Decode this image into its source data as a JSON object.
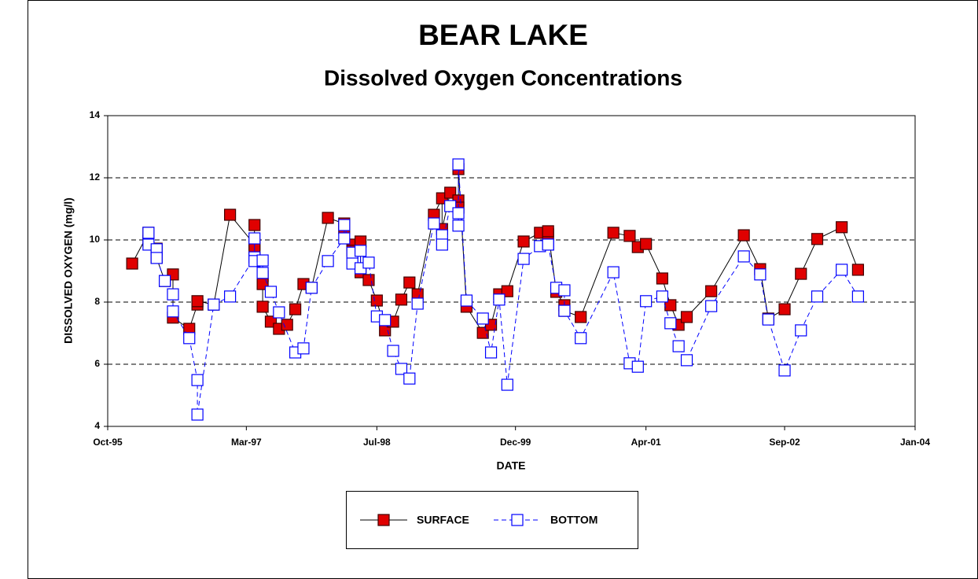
{
  "chart_data": {
    "type": "line",
    "title": "BEAR LAKE",
    "subtitle": "Dissolved Oxygen Concentrations",
    "x_label": "DATE",
    "y_label": "DISSOLVED OXYGEN (mg/l)",
    "xlim": [
      "1995-10",
      "2004-01"
    ],
    "xticks": [
      {
        "value": "1995-10",
        "label": "Oct-95"
      },
      {
        "value": "1997-03",
        "label": "Mar-97"
      },
      {
        "value": "1998-07",
        "label": "Jul-98"
      },
      {
        "value": "1999-12",
        "label": "Dec-99"
      },
      {
        "value": "2001-04",
        "label": "Apr-01"
      },
      {
        "value": "2002-09",
        "label": "Sep-02"
      },
      {
        "value": "2004-01",
        "label": "Jan-04"
      }
    ],
    "ylim": [
      4,
      14
    ],
    "yticks": [
      4,
      6,
      8,
      10,
      12,
      14
    ],
    "grid": true,
    "legend": "bottom",
    "series": [
      {
        "name": "SURFACE",
        "color": "#e00000",
        "line_color": "#000000",
        "marker": "filled-square",
        "dashed": false,
        "x": [
          "1996-01",
          "1996-03",
          "1996-03",
          "1996-04",
          "1996-04",
          "1996-05",
          "1996-06",
          "1996-06",
          "1996-08",
          "1996-09",
          "1996-09",
          "1996-11",
          "1997-01",
          "1997-04",
          "1997-04",
          "1997-04",
          "1997-05",
          "1997-05",
          "1997-05",
          "1997-06",
          "1997-07",
          "1997-08",
          "1997-09",
          "1997-10",
          "1997-11",
          "1998-01",
          "1998-03",
          "1998-03",
          "1998-04",
          "1998-04",
          "1998-05",
          "1998-05",
          "1998-06",
          "1998-07",
          "1998-08",
          "1998-09",
          "1998-10",
          "1998-11",
          "1998-12",
          "1999-02",
          "1999-03",
          "1999-03",
          "1999-04",
          "1999-05",
          "1999-05",
          "1999-05",
          "1999-06",
          "1999-08",
          "1999-09",
          "1999-10",
          "1999-11",
          "2000-01",
          "2000-03",
          "2000-04",
          "2000-04",
          "2000-05",
          "2000-06",
          "2000-06",
          "2000-08",
          "2000-12",
          "2001-02",
          "2001-03",
          "2001-04",
          "2001-06",
          "2001-07",
          "2001-08",
          "2001-09",
          "2001-12",
          "2002-04",
          "2002-06",
          "2002-07",
          "2002-09",
          "2002-11",
          "2003-01",
          "2003-04",
          "2003-06"
        ],
        "values": [
          9.24,
          10.23,
          9.97,
          9.72,
          9.42,
          8.68,
          8.89,
          7.5,
          7.14,
          7.92,
          8.03,
          7.92,
          10.81,
          9.85,
          10.48,
          9.7,
          8.84,
          8.58,
          7.85,
          7.37,
          7.14,
          7.27,
          7.77,
          8.58,
          8.46,
          10.71,
          10.53,
          10.38,
          9.85,
          9.65,
          9.95,
          8.96,
          8.71,
          8.05,
          7.09,
          7.37,
          8.08,
          8.63,
          8.25,
          10.81,
          11.34,
          10.35,
          11.52,
          11.27,
          11.04,
          12.28,
          7.85,
          7.01,
          7.27,
          8.25,
          8.35,
          9.95,
          10.23,
          10.18,
          10.28,
          8.33,
          7.9,
          7.72,
          7.52,
          10.23,
          10.13,
          9.77,
          9.87,
          8.76,
          7.9,
          7.27,
          7.52,
          8.35,
          10.15,
          9.06,
          7.47,
          7.77,
          8.91,
          10.03,
          10.41,
          9.04
        ]
      },
      {
        "name": "BOTTOM",
        "color": "#0000ff",
        "line_color": "#0000ff",
        "marker": "open-square",
        "dashed": true,
        "x": [
          "1996-03",
          "1996-03",
          "1996-04",
          "1996-04",
          "1996-05",
          "1996-06",
          "1996-06",
          "1996-08",
          "1996-09",
          "1996-09",
          "1996-11",
          "1997-01",
          "1997-04",
          "1997-04",
          "1997-04",
          "1997-05",
          "1997-05",
          "1997-06",
          "1997-07",
          "1997-09",
          "1997-10",
          "1997-11",
          "1998-01",
          "1998-03",
          "1998-03",
          "1998-04",
          "1998-04",
          "1998-05",
          "1998-05",
          "1998-06",
          "1998-07",
          "1998-08",
          "1998-09",
          "1998-10",
          "1998-11",
          "1998-12",
          "1999-02",
          "1999-03",
          "1999-03",
          "1999-04",
          "1999-05",
          "1999-05",
          "1999-05",
          "1999-06",
          "1999-08",
          "1999-09",
          "1999-10",
          "1999-11",
          "2000-01",
          "2000-03",
          "2000-04",
          "2000-04",
          "2000-05",
          "2000-06",
          "2000-06",
          "2000-08",
          "2000-12",
          "2001-02",
          "2001-03",
          "2001-04",
          "2001-06",
          "2001-07",
          "2001-08",
          "2001-09",
          "2001-12",
          "2002-04",
          "2002-06",
          "2002-07",
          "2002-09",
          "2002-11",
          "2003-01",
          "2003-04",
          "2003-06"
        ],
        "values": [
          10.23,
          9.85,
          9.7,
          9.42,
          8.68,
          8.25,
          7.7,
          6.84,
          5.49,
          4.38,
          7.92,
          8.18,
          9.44,
          10.05,
          9.32,
          9.34,
          8.94,
          8.33,
          7.67,
          6.38,
          6.51,
          8.46,
          9.32,
          10.05,
          10.48,
          9.59,
          9.24,
          9.65,
          9.09,
          9.27,
          7.54,
          7.42,
          6.43,
          5.85,
          5.54,
          7.95,
          10.53,
          10.15,
          9.85,
          11.09,
          10.86,
          10.46,
          12.43,
          8.05,
          7.47,
          6.38,
          8.08,
          5.34,
          9.39,
          9.8,
          9.85,
          9.85,
          8.46,
          8.38,
          7.72,
          6.84,
          8.96,
          6.03,
          5.92,
          8.03,
          8.18,
          7.32,
          6.58,
          6.13,
          7.87,
          9.47,
          8.89,
          7.44,
          5.8,
          7.09,
          8.18,
          9.04,
          8.18
        ]
      }
    ]
  }
}
